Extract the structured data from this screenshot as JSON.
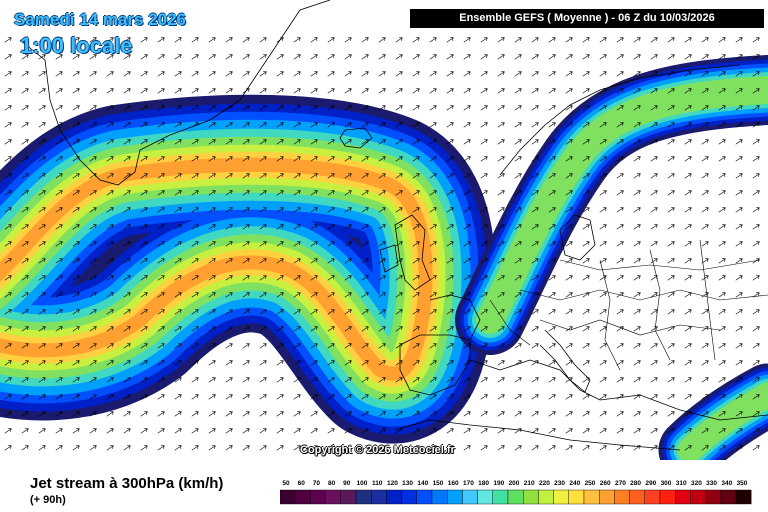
{
  "title": {
    "date": "Samedi 14 mars 2026",
    "time": "1:00 locale"
  },
  "header": {
    "model_run": "Ensemble GEFS  ( Moyenne )  -  06 Z du 10/03/2026"
  },
  "copyright": "Copyright © 2026 Meteociel.fr",
  "footer": {
    "parameter": "Jet stream à 300hPa (km/h)",
    "lead": "(+ 90h)"
  },
  "legend": {
    "values": [
      "50",
      "60",
      "70",
      "80",
      "90",
      "100",
      "110",
      "120",
      "130",
      "140",
      "150",
      "160",
      "170",
      "180",
      "190",
      "200",
      "210",
      "220",
      "230",
      "240",
      "250",
      "260",
      "270",
      "280",
      "290",
      "300",
      "310",
      "320",
      "330",
      "340",
      "350"
    ],
    "colors": [
      "#3a0030",
      "#500040",
      "#600050",
      "#6a1060",
      "#5a1a5a",
      "#203080",
      "#1a2ea0",
      "#0020c8",
      "#0030e0",
      "#0050ff",
      "#0078ff",
      "#00a0ff",
      "#40c8ff",
      "#60e8e0",
      "#40e0a0",
      "#60e060",
      "#90e040",
      "#c0f040",
      "#f0f040",
      "#ffe040",
      "#ffc040",
      "#ffa030",
      "#ff8020",
      "#ff6020",
      "#ff4020",
      "#ff2010",
      "#e00010",
      "#c00010",
      "#900010",
      "#600010",
      "#200000"
    ]
  },
  "jet_colors": [
    "#1a1a6e",
    "#0020c8",
    "#0050ff",
    "#00a0ff",
    "#40d8c0",
    "#80e060",
    "#c8f040",
    "#ffd040",
    "#ffa030"
  ]
}
